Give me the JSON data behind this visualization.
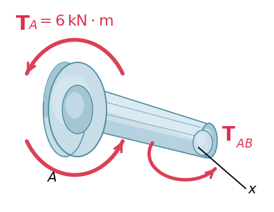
{
  "bg_color": "#ffffff",
  "shaft_light": "#cde0ea",
  "shaft_mid": "#a8c8d8",
  "shaft_dark": "#7aaabb",
  "shaft_edge": "#4e8fa0",
  "shaft_highlight": "#e0eff7",
  "disk_light": "#c8dde8",
  "disk_mid": "#a5c5d5",
  "disk_highlight": "#ddeef8",
  "arrow_color": "#dc4055",
  "text_red": "#dc3050",
  "text_black": "#111111"
}
